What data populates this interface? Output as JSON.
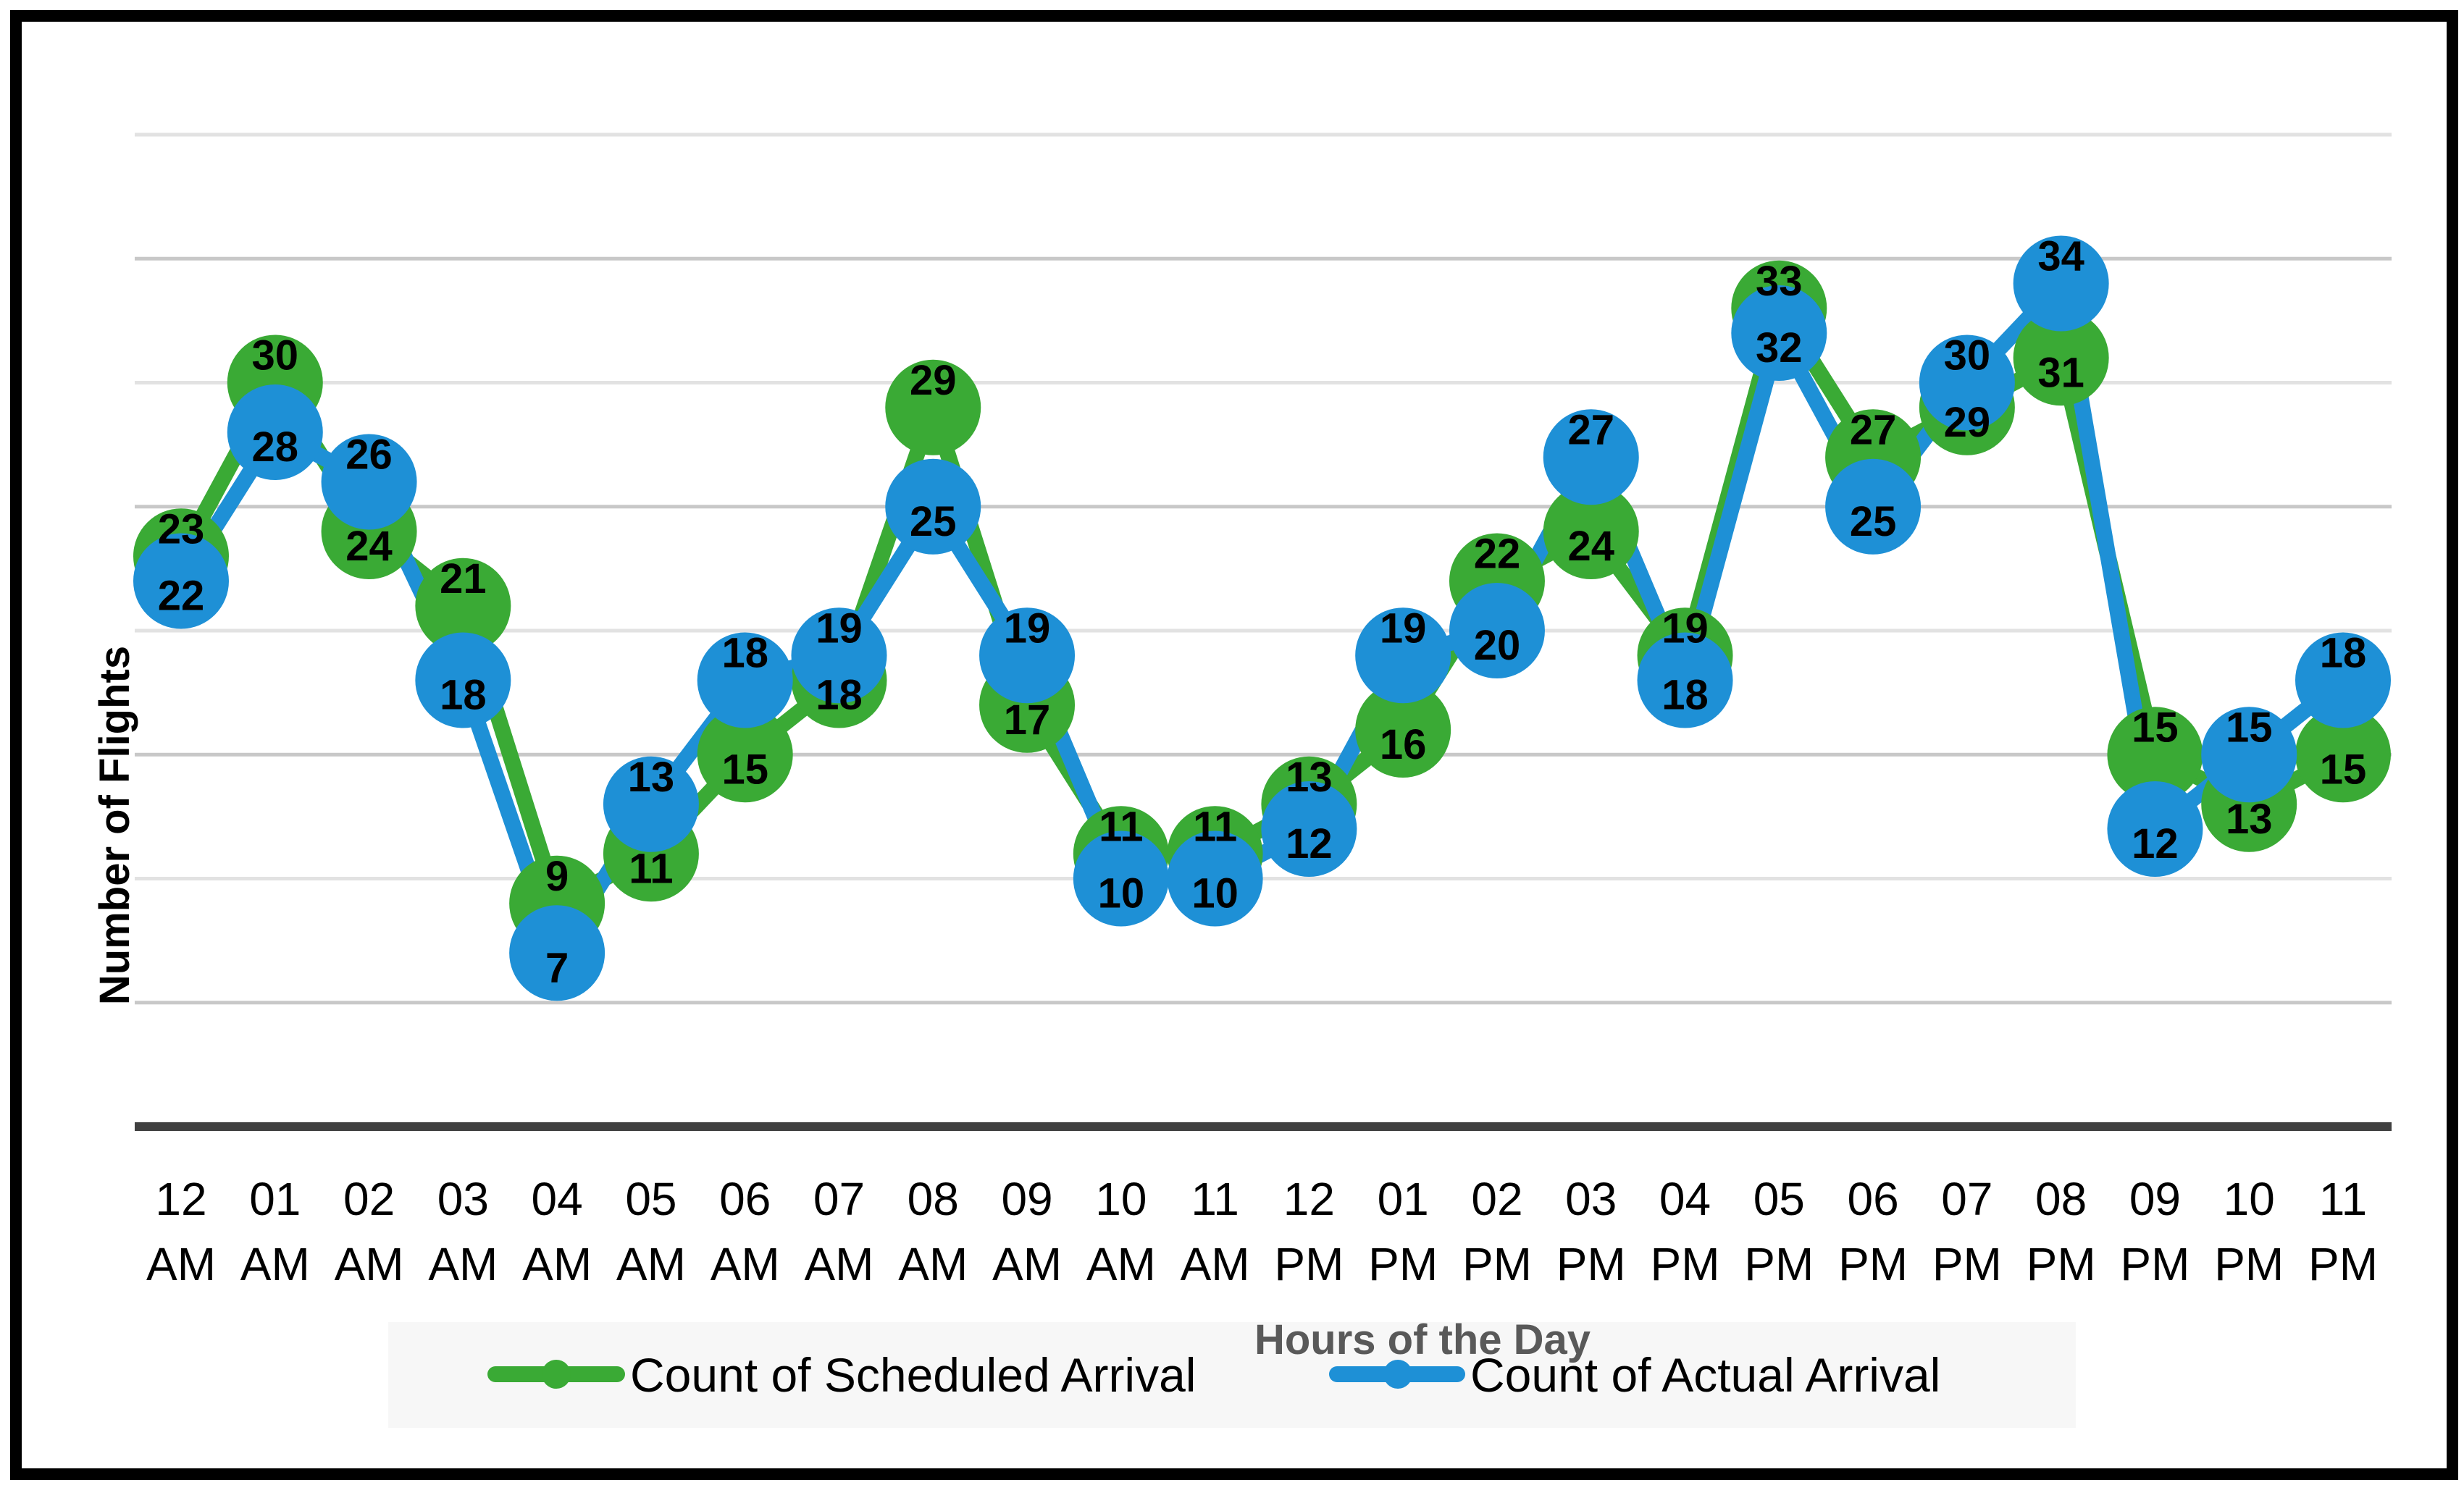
{
  "chart_data": {
    "type": "line",
    "title": "",
    "xlabel": "Hours of the Day",
    "ylabel": "Number of Flights",
    "ylim": [
      0,
      40
    ],
    "grid": true,
    "legend_position": "bottom",
    "categories": [
      [
        "12",
        "AM"
      ],
      [
        "01",
        "AM"
      ],
      [
        "02",
        "AM"
      ],
      [
        "03",
        "AM"
      ],
      [
        "04",
        "AM"
      ],
      [
        "05",
        "AM"
      ],
      [
        "06",
        "AM"
      ],
      [
        "07",
        "AM"
      ],
      [
        "08",
        "AM"
      ],
      [
        "09",
        "AM"
      ],
      [
        "10",
        "AM"
      ],
      [
        "11",
        "AM"
      ],
      [
        "12",
        "PM"
      ],
      [
        "01",
        "PM"
      ],
      [
        "02",
        "PM"
      ],
      [
        "03",
        "PM"
      ],
      [
        "04",
        "PM"
      ],
      [
        "05",
        "PM"
      ],
      [
        "06",
        "PM"
      ],
      [
        "07",
        "PM"
      ],
      [
        "08",
        "PM"
      ],
      [
        "09",
        "PM"
      ],
      [
        "10",
        "PM"
      ],
      [
        "11",
        "PM"
      ]
    ],
    "series": [
      {
        "name": "Count of Scheduled Arrival",
        "color": "#3aaa35",
        "values": [
          23,
          30,
          24,
          21,
          9,
          11,
          15,
          18,
          29,
          17,
          11,
          11,
          13,
          16,
          22,
          24,
          19,
          33,
          27,
          29,
          31,
          15,
          13,
          15
        ]
      },
      {
        "name": "Count of Actual Arrival",
        "color": "#1e90d6",
        "values": [
          22,
          28,
          26,
          18,
          7,
          13,
          18,
          19,
          25,
          19,
          10,
          10,
          12,
          19,
          20,
          27,
          18,
          32,
          25,
          30,
          34,
          12,
          15,
          18
        ]
      }
    ]
  }
}
